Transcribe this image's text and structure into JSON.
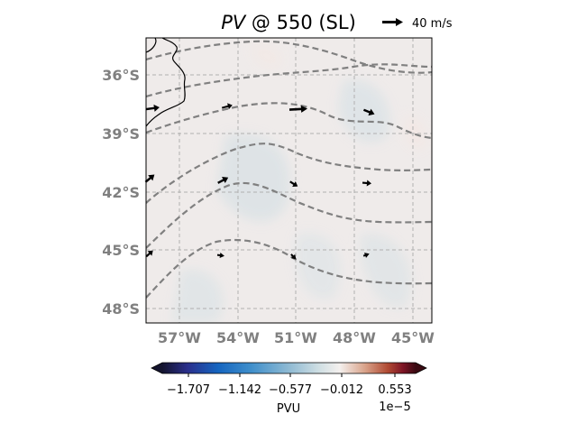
{
  "title": {
    "variable": "PV",
    "level_text": " @ 550 (SL)"
  },
  "quiver_key": {
    "label": "40 m/s"
  },
  "map": {
    "lat_ticks": [
      "36°S",
      "39°S",
      "42°S",
      "45°S",
      "48°S"
    ],
    "lon_ticks": [
      "57°W",
      "54°W",
      "51°W",
      "48°W",
      "45°W"
    ],
    "gridlines": true,
    "coastline": true,
    "contour_style": "dashed-gray",
    "arrow_grid": "regular"
  },
  "colorbar": {
    "ticks": [
      "−1.707",
      "−1.142",
      "−0.577",
      "−0.012",
      "0.553"
    ],
    "unit_label": "PVU",
    "multiplier": "1e−5",
    "orientation": "horizontal",
    "extend": "both",
    "colormap": [
      "#14142e",
      "#2a2f8c",
      "#1565c0",
      "#3f8fcb",
      "#8fbad3",
      "#d0dfe3",
      "#f4f0ee",
      "#d9a38a",
      "#b04a33",
      "#7e1526",
      "#3a0a12"
    ]
  }
}
